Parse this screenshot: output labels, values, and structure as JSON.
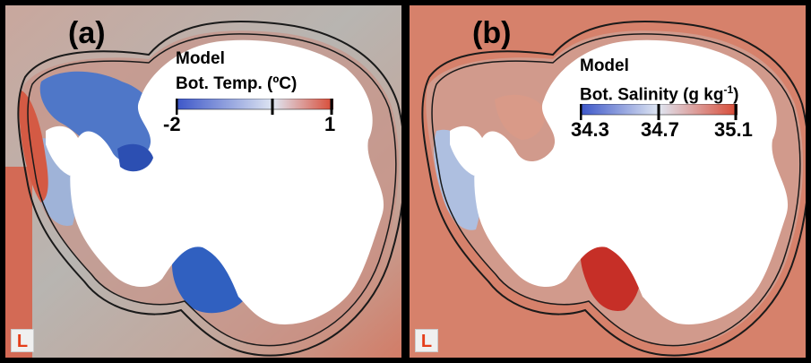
{
  "panels": [
    {
      "label": "(a)",
      "title_line1": "Model",
      "title_line2": "Bot. Temp. (ºC)",
      "ticks": [
        "-2",
        "1"
      ],
      "cmap": [
        "#3b55c8",
        "#dfe6f2",
        "#d84a35"
      ],
      "badge": "L"
    },
    {
      "label": "(b)",
      "title_line1": "Model",
      "title_line2_pre": "Bot. Salinity (g kg",
      "title_line2_sup": "-1",
      "title_line2_post": ")",
      "ticks": [
        "34.3",
        "34.7",
        "35.1"
      ],
      "cmap": [
        "#3b55c8",
        "#dfe6f2",
        "#d84a35"
      ],
      "badge": "L"
    }
  ],
  "colors": {
    "land": "#ffffff",
    "ocean_a": "#c9a9a0",
    "ocean_b": "#d57c66",
    "cold": "#2e55b8",
    "warm": "#cf4a33",
    "badge_text": "#e53e1a"
  }
}
